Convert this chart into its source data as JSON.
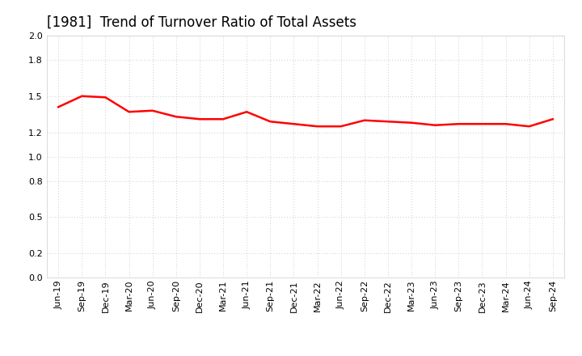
{
  "title": "[1981]  Trend of Turnover Ratio of Total Assets",
  "x_labels": [
    "Jun-19",
    "Sep-19",
    "Dec-19",
    "Mar-20",
    "Jun-20",
    "Sep-20",
    "Dec-20",
    "Mar-21",
    "Jun-21",
    "Sep-21",
    "Dec-21",
    "Mar-22",
    "Jun-22",
    "Sep-22",
    "Dec-22",
    "Mar-23",
    "Jun-23",
    "Sep-23",
    "Dec-23",
    "Mar-24",
    "Jun-24",
    "Sep-24"
  ],
  "values": [
    1.41,
    1.5,
    1.49,
    1.37,
    1.38,
    1.33,
    1.31,
    1.31,
    1.37,
    1.29,
    1.27,
    1.25,
    1.25,
    1.3,
    1.29,
    1.28,
    1.26,
    1.27,
    1.27,
    1.27,
    1.25,
    1.31
  ],
  "line_color": "#ff0000",
  "line_width": 1.8,
  "ylim": [
    0.0,
    2.0
  ],
  "yticks": [
    0.0,
    0.2,
    0.5,
    0.8,
    1.0,
    1.2,
    1.5,
    1.8,
    2.0
  ],
  "background_color": "#ffffff",
  "grid_color": "#bbbbbb",
  "title_fontsize": 12,
  "tick_fontsize": 8
}
